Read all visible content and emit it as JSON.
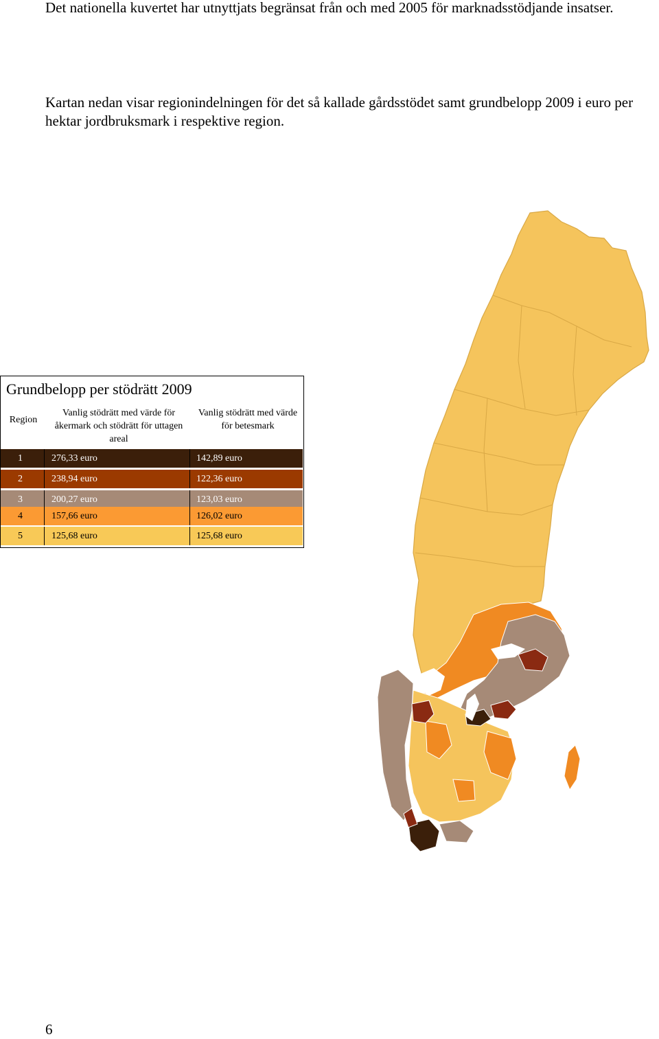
{
  "text": {
    "paragraph1": "Det nationella kuvertet har utnyttjats begränsat från och med 2005 för marknadsstödjande insatser.",
    "paragraph2": "Kartan nedan visar regionindelningen för det så kallade gårdsstödet samt grundbelopp 2009 i euro per hektar jordbruksmark i respektive region."
  },
  "legend": {
    "title": "Grundbelopp per stödrätt 2009",
    "headers": {
      "region": "Region",
      "col1": "Vanlig stödrätt med värde för åkermark och stödrätt för uttagen areal",
      "col2": "Vanlig stödrätt med värde för betesmark"
    },
    "rows": [
      {
        "region": "1",
        "col1": "276,33 euro",
        "col2": "142,89 euro",
        "color": "#3b1f0a",
        "text_color": "#ffffff"
      },
      {
        "region": "2",
        "col1": "238,94 euro",
        "col2": "122,36 euro",
        "color": "#9b3a00",
        "text_color": "#ffffff"
      },
      {
        "region": "3",
        "col1": "200,27 euro",
        "col2": "123,03 euro",
        "color": "#a68a77",
        "text_color": "#ffffff"
      },
      {
        "region": "4",
        "col1": "157,66 euro",
        "col2": "126,02 euro",
        "color": "#fb9a33",
        "text_color": "#000000"
      },
      {
        "region": "5",
        "col1": "125,68 euro",
        "col2": "125,68 euro",
        "color": "#f8c957",
        "text_color": "#000000"
      }
    ]
  },
  "map": {
    "colors": {
      "region1": "#3b1f0a",
      "region2": "#8a2a12",
      "region3": "#a68a77",
      "region4": "#f08a22",
      "region5": "#f5c45c",
      "boundary": "#ffffff"
    }
  },
  "footer": {
    "page_number": "6"
  }
}
